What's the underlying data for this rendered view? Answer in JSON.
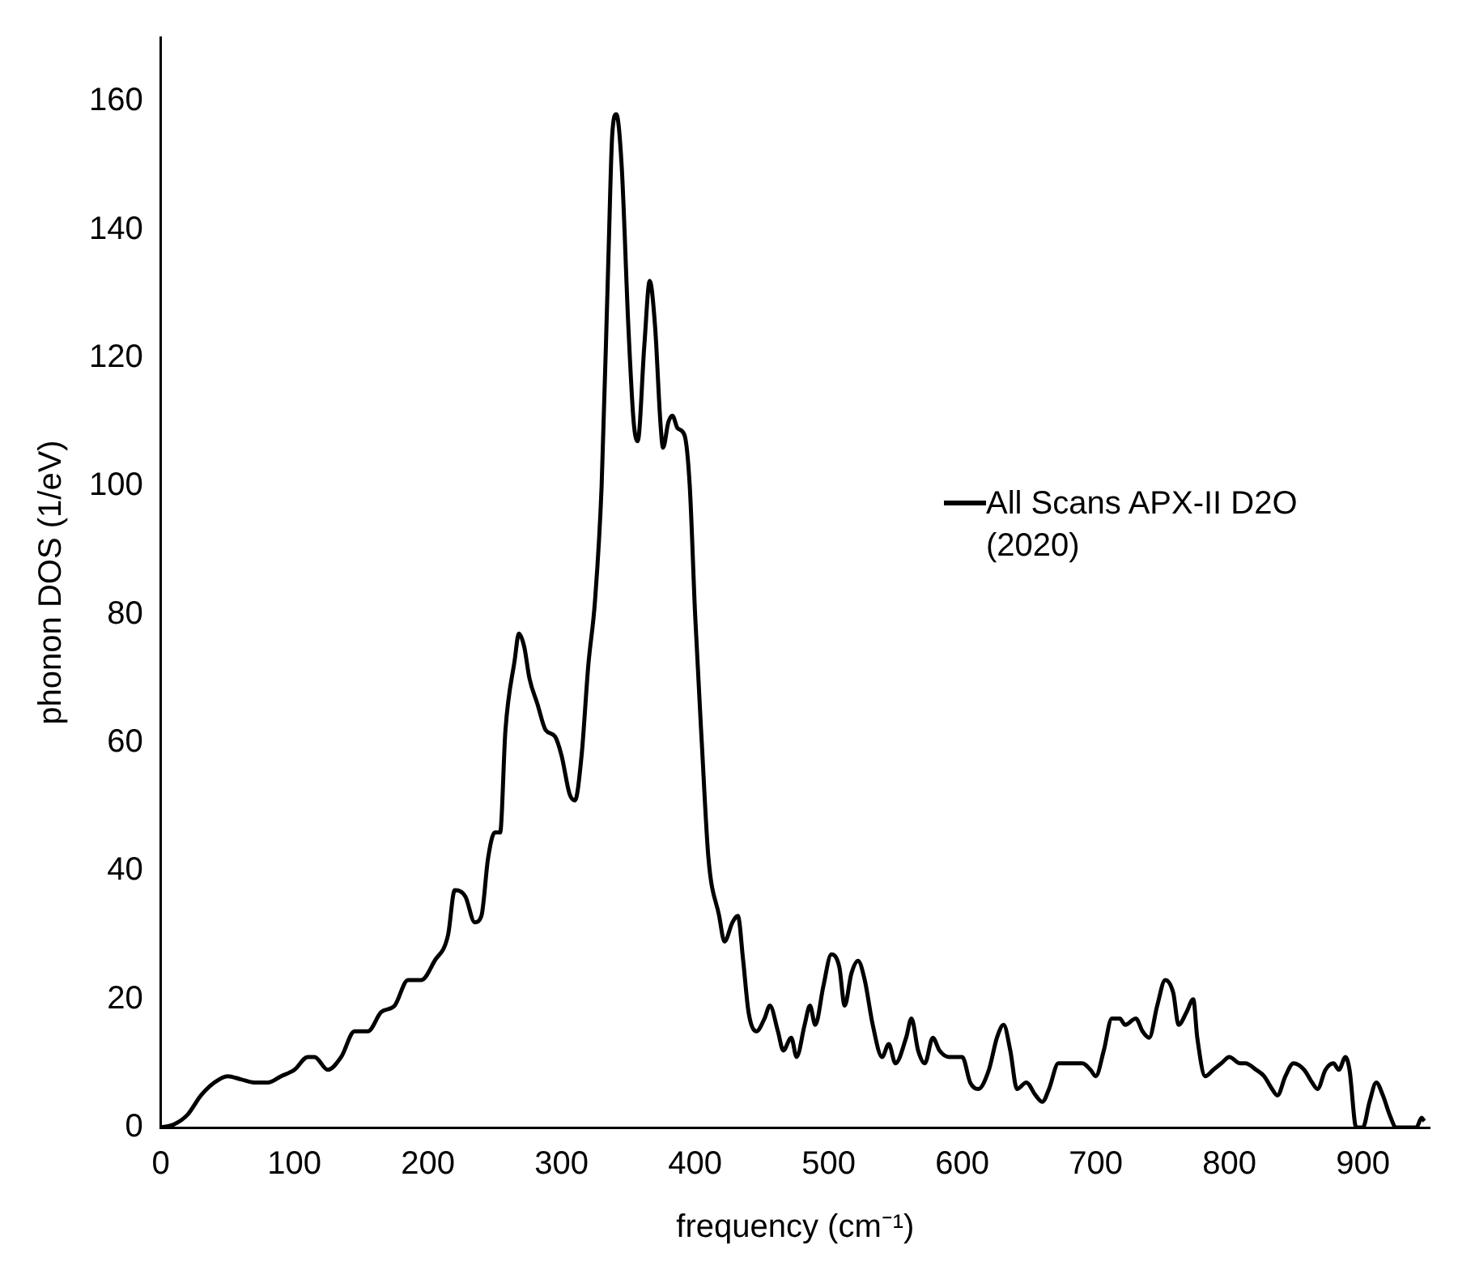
{
  "chart_data": {
    "type": "line",
    "xlabel": "frequency (cm⁻¹)",
    "ylabel": "phonon DOS (1/eV)",
    "xlim": [
      0,
      950
    ],
    "ylim": [
      0,
      170
    ],
    "xticks": [
      0,
      100,
      200,
      300,
      400,
      500,
      600,
      700,
      800,
      900
    ],
    "yticks": [
      0,
      20,
      40,
      60,
      80,
      100,
      120,
      140,
      160
    ],
    "grid": false,
    "legend": "right",
    "marker": "none",
    "line_style": "solid",
    "series": [
      {
        "name": "All Scans APX-II D2O (2020)",
        "color": "#000000",
        "x": [
          0,
          10,
          20,
          30,
          40,
          50,
          60,
          70,
          80,
          90,
          100,
          110,
          115,
          125,
          135,
          145,
          155,
          165,
          175,
          185,
          195,
          205,
          215,
          220,
          228,
          235,
          240,
          245,
          250,
          254,
          258,
          265,
          268,
          272,
          276,
          282,
          288,
          295,
          300,
          306,
          310,
          315,
          320,
          325,
          330,
          335,
          338,
          341,
          345,
          350,
          354,
          357,
          362,
          366,
          370,
          374,
          376,
          380,
          383,
          387,
          392,
          396,
          400,
          405,
          410,
          418,
          422,
          428,
          432,
          436,
          440,
          446,
          452,
          456,
          462,
          466,
          472,
          476,
          482,
          486,
          490,
          496,
          502,
          508,
          512,
          517,
          522,
          527,
          533,
          540,
          545,
          550,
          558,
          562,
          567,
          572,
          578,
          583,
          590,
          600,
          606,
          612,
          620,
          626,
          631,
          636,
          641,
          648,
          655,
          660,
          665,
          672,
          680,
          690,
          696,
          700,
          706,
          712,
          718,
          722,
          730,
          735,
          740,
          746,
          752,
          758,
          762,
          768,
          773,
          776,
          782,
          788,
          794,
          800,
          808,
          812,
          820,
          826,
          832,
          836,
          842,
          848,
          856,
          862,
          866,
          872,
          878,
          882,
          887,
          890,
          895,
          900,
          905,
          910,
          915,
          920,
          925,
          940,
          944,
          946
        ],
        "values": [
          0,
          0.5,
          2,
          5,
          7,
          8,
          7.5,
          7,
          7,
          8,
          9,
          11,
          11,
          9,
          11,
          15,
          15,
          18,
          19,
          23,
          23,
          26,
          30,
          37,
          36,
          32,
          33,
          42,
          46,
          46,
          62,
          73,
          77,
          75,
          70,
          66,
          62,
          61,
          58,
          52,
          51,
          58,
          72,
          82,
          100,
          135,
          155,
          158,
          150,
          125,
          110,
          107,
          122,
          132,
          125,
          110,
          106,
          110,
          111,
          109,
          108,
          100,
          80,
          60,
          42,
          33,
          29,
          32,
          33,
          26,
          18,
          15,
          17,
          19,
          15,
          12,
          14,
          11,
          16,
          19,
          16,
          22,
          27,
          25,
          19,
          24,
          26,
          23,
          16,
          11,
          13,
          10,
          14,
          17,
          12,
          10,
          14,
          12,
          11,
          11,
          7,
          6,
          9,
          14,
          16,
          12,
          6,
          7,
          5,
          4,
          6,
          10,
          10,
          10,
          9,
          8,
          12,
          17,
          17,
          16,
          17,
          15,
          14,
          19,
          23,
          21,
          16,
          18,
          20,
          14,
          8,
          9,
          10,
          11,
          10,
          10,
          9,
          8,
          6,
          5,
          8,
          10,
          9,
          7,
          6,
          9,
          10,
          9,
          11,
          9,
          0,
          0,
          4,
          7,
          5,
          2,
          0,
          0,
          1.5,
          1
        ]
      }
    ]
  }
}
